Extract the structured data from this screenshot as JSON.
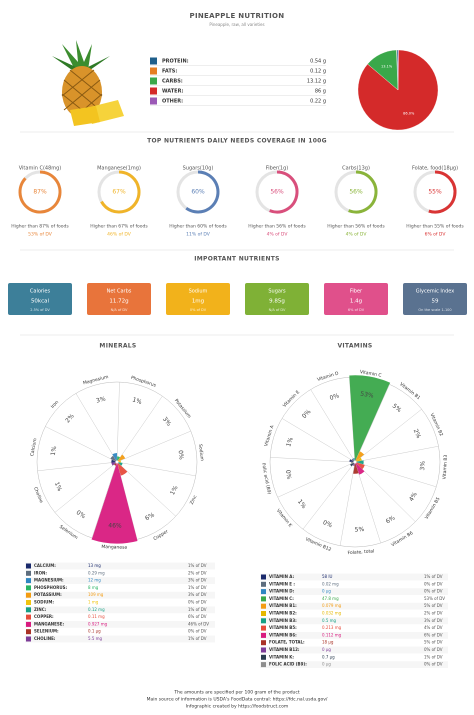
{
  "header": {
    "title": "PINEAPPLE NUTRITION",
    "subtitle": "Pineapple, raw, all varieties"
  },
  "macros": {
    "items": [
      {
        "name": "PROTEIN:",
        "value": 0.54,
        "value_label": "0.54 g",
        "color": "#1f5f8b",
        "pie_label": null
      },
      {
        "name": "FATS:",
        "value": 0.12,
        "value_label": "0.12 g",
        "color": "#e67e22",
        "pie_label": null
      },
      {
        "name": "CARBS:",
        "value": 13.12,
        "value_label": "13.12 g",
        "color": "#3aa84a",
        "pie_label": "13.1%"
      },
      {
        "name": "WATER:",
        "value": 86,
        "value_label": "86 g",
        "color": "#d42a2a",
        "pie_label": "86.0%"
      },
      {
        "name": "OTHER:",
        "value": 0.22,
        "value_label": "0.22 g",
        "color": "#9b59b6",
        "pie_label": null
      }
    ]
  },
  "coverage": {
    "title": "TOP NUTRIENTS DAILY NEEDS COVERAGE IN 100G",
    "items": [
      {
        "name": "Vitamin C(48mg)",
        "percentile": 87,
        "percentile_label": "87%",
        "comparison": "Higher than 87% of foods",
        "dv": "53% of DV",
        "color": "#e8863a"
      },
      {
        "name": "Manganese(1mg)",
        "percentile": 67,
        "percentile_label": "67%",
        "comparison": "Higher than 67% of foods",
        "dv": "46% of DV",
        "color": "#f0b429"
      },
      {
        "name": "Sugars(10g)",
        "percentile": 60,
        "percentile_label": "60%",
        "comparison": "Higher than 60% of foods",
        "dv": "11% of DV",
        "color": "#5b7fb5"
      },
      {
        "name": "Fiber(1g)",
        "percentile": 56,
        "percentile_label": "56%",
        "comparison": "Higher than 56% of foods",
        "dv": "4% of DV",
        "color": "#d94f7c"
      },
      {
        "name": "Carbs(13g)",
        "percentile": 56,
        "percentile_label": "56%",
        "comparison": "Higher than 56% of foods",
        "dv": "4% of DV",
        "color": "#8ab43a"
      },
      {
        "name": "Folate, food(18µg)",
        "percentile": 55,
        "percentile_label": "55%",
        "comparison": "Higher than 55% of foods",
        "dv": "6% of DV",
        "color": "#d93434"
      }
    ]
  },
  "important": {
    "title": "IMPORTANT NUTRIENTS",
    "items": [
      {
        "name": "Calories",
        "value": "50kcal",
        "note": "2.5% of DV",
        "color": "#3d7f99"
      },
      {
        "name": "Net Carbs",
        "value": "11.72g",
        "note": "N/A of DV",
        "color": "#e8743b"
      },
      {
        "name": "Sodium",
        "value": "1mg",
        "note": "0% of DV",
        "color": "#f2b21b"
      },
      {
        "name": "Sugars",
        "value": "9.85g",
        "note": "N/A of DV",
        "color": "#7fb136"
      },
      {
        "name": "Fiber",
        "value": "1.4g",
        "note": "6% of DV",
        "color": "#e0508b"
      },
      {
        "name": "Glycemic Index",
        "value": "59",
        "note": "On the scale 1-100",
        "color": "#5a7290"
      }
    ]
  },
  "minerals": {
    "title": "MINERALS",
    "items": [
      {
        "name": "Calcium",
        "legend_name": "CALCIUM:",
        "amount": "13 mg",
        "dv": 1,
        "dv_label": "1%",
        "dv_text": "1% of DV",
        "color": "#1a2a6c"
      },
      {
        "name": "Iron",
        "legend_name": "IRON:",
        "amount": "0.29 mg",
        "dv": 2,
        "dv_label": "2%",
        "dv_text": "2% of DV",
        "color": "#5d6d7e"
      },
      {
        "name": "Magnesium",
        "legend_name": "MAGNESIUM:",
        "amount": "12 mg",
        "dv": 3,
        "dv_label": "3%",
        "dv_text": "3% of DV",
        "color": "#2e86c1"
      },
      {
        "name": "Phosphorus",
        "legend_name": "PHOSPHORUS:",
        "amount": "8 mg",
        "dv": 1,
        "dv_label": "1%",
        "dv_text": "1% of DV",
        "color": "#28b463"
      },
      {
        "name": "Potassium",
        "legend_name": "POTASSIUM:",
        "amount": "109 mg",
        "dv": 3,
        "dv_label": "3%",
        "dv_text": "3% of DV",
        "color": "#f39c12"
      },
      {
        "name": "Sodium",
        "legend_name": "SODIUM:",
        "amount": "1 mg",
        "dv": 0,
        "dv_label": "0%",
        "dv_text": "0% of DV",
        "color": "#f1c40f"
      },
      {
        "name": "Zinc",
        "legend_name": "ZINC:",
        "amount": "0.12 mg",
        "dv": 1,
        "dv_label": "1%",
        "dv_text": "1% of DV",
        "color": "#16a085"
      },
      {
        "name": "Copper",
        "legend_name": "COPPER:",
        "amount": "0.11 mg",
        "dv": 6,
        "dv_label": "6%",
        "dv_text": "6% of DV",
        "color": "#e74c3c"
      },
      {
        "name": "Manganese",
        "legend_name": "MANGANESE:",
        "amount": "0.927 mg",
        "dv": 46,
        "dv_label": "46%",
        "dv_text": "46% of DV",
        "color": "#d81b7f"
      },
      {
        "name": "Selenium",
        "legend_name": "SELENIUM:",
        "amount": "0.1 µg",
        "dv": 0,
        "dv_label": "0%",
        "dv_text": "0% of DV",
        "color": "#a93226"
      },
      {
        "name": "Choline",
        "legend_name": "CHOLINE:",
        "amount": "5.5 mg",
        "dv": 1,
        "dv_label": "1%",
        "dv_text": "1% of DV",
        "color": "#7d3c98"
      }
    ]
  },
  "vitamins": {
    "title": "VITAMINS",
    "items": [
      {
        "name": "Vitamin A",
        "legend_name": "VITAMIN A:",
        "amount": "58 IU",
        "dv": 1,
        "dv_label": "1%",
        "dv_text": "1% of DV",
        "color": "#1a2a6c"
      },
      {
        "name": "Vitamin E",
        "legend_name": "VITAMIN E :",
        "amount": "0.02 mg",
        "dv": 0,
        "dv_label": "0%",
        "dv_text": "0% of DV",
        "color": "#5d6d7e"
      },
      {
        "name": "Vitamin D",
        "legend_name": "VITAMIN D:",
        "amount": "0 µg",
        "dv": 0,
        "dv_label": "0%",
        "dv_text": "0% of DV",
        "color": "#2e86c1"
      },
      {
        "name": "Vitamin C",
        "legend_name": "VITAMIN C:",
        "amount": "47.8 mg",
        "dv": 53,
        "dv_label": "53%",
        "dv_text": "53% of DV",
        "color": "#3aa84a"
      },
      {
        "name": "Vitamin B1",
        "legend_name": "VITAMIN B1:",
        "amount": "0.079 mg",
        "dv": 5,
        "dv_label": "5%",
        "dv_text": "5% of DV",
        "color": "#f39c12"
      },
      {
        "name": "Vitamin B2",
        "legend_name": "VITAMIN B2:",
        "amount": "0.032 mg",
        "dv": 2,
        "dv_label": "2%",
        "dv_text": "2% of DV",
        "color": "#e6b800"
      },
      {
        "name": "Vitamin B3",
        "legend_name": "VITAMIN B3:",
        "amount": "0.5 mg",
        "dv": 3,
        "dv_label": "3%",
        "dv_text": "3% of DV",
        "color": "#16a085"
      },
      {
        "name": "Vitamin B5",
        "legend_name": "VITAMIN B5:",
        "amount": "0.213 mg",
        "dv": 4,
        "dv_label": "4%",
        "dv_text": "4% of DV",
        "color": "#e74c3c"
      },
      {
        "name": "Vitamin B6",
        "legend_name": "VITAMIN B6:",
        "amount": "0.112 mg",
        "dv": 6,
        "dv_label": "6%",
        "dv_text": "6% of DV",
        "color": "#d81b7f"
      },
      {
        "name": "Folate, total",
        "legend_name": "FOLATE, TOTAL:",
        "amount": "18 µg",
        "dv": 5,
        "dv_label": "5%",
        "dv_text": "5% of DV",
        "color": "#a93226"
      },
      {
        "name": "Vitamin B12",
        "legend_name": "VITAMIN B12:",
        "amount": "0 µg",
        "dv": 0,
        "dv_label": "0%",
        "dv_text": "0% of DV",
        "color": "#7d3c98"
      },
      {
        "name": "Vitamin K",
        "legend_name": "VITAMIN K:",
        "amount": "0.7 µg",
        "dv": 1,
        "dv_label": "1%",
        "dv_text": "1% of DV",
        "color": "#2c3e50"
      },
      {
        "name": "Folic acid (B9)",
        "legend_name": "FOLIC ACID (B9):",
        "amount": "0 µg",
        "dv": 0,
        "dv_label": "0%",
        "dv_text": "0% of DV",
        "color": "#8e8e8e"
      }
    ]
  },
  "footer": {
    "lines": [
      "The amounts are specified per 100 gram of the product",
      "Main source of information is USDA's FoodData central: https://fdc.nal.usda.gov/",
      "Infographic created by https://foodstruct.com"
    ]
  }
}
